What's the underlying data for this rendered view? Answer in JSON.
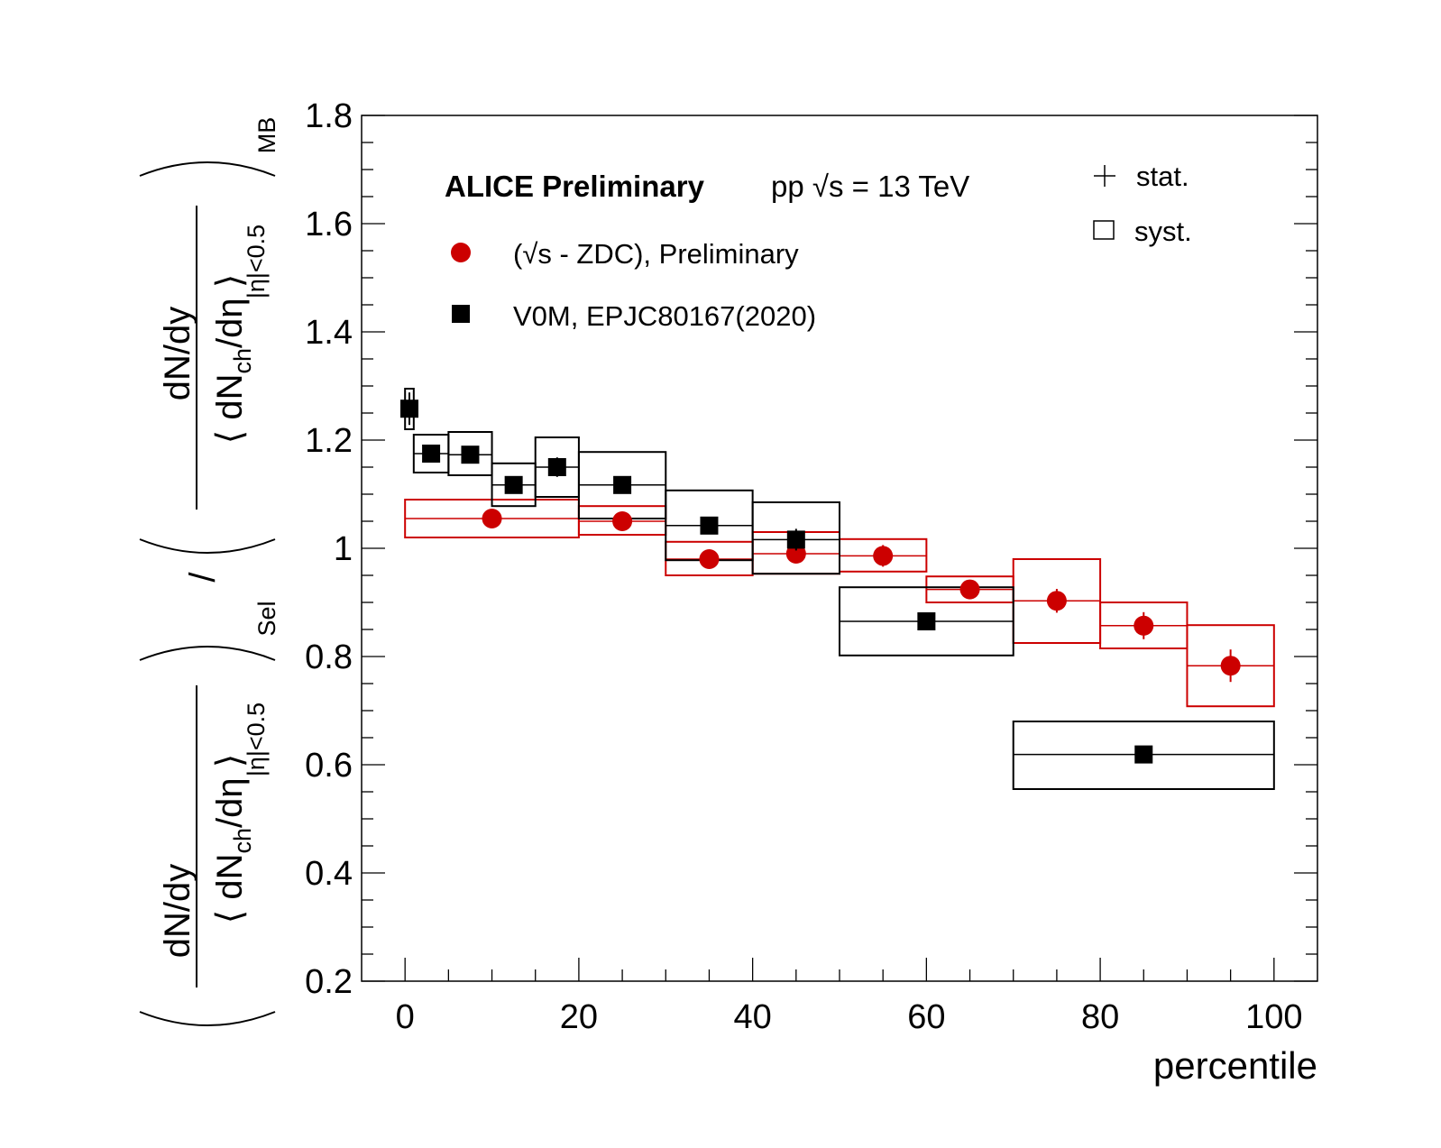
{
  "chart_data": {
    "type": "scatter",
    "header_label": "ALICE Preliminary",
    "collision_label": "pp  √s = 13 TeV",
    "xlabel": "percentile",
    "ylabel": {
      "numerator": "dN/dy",
      "denominator_prefix": "⟨ dN",
      "denominator_sub": "ch",
      "denominator_suffix": "/dη ⟩",
      "eta_cut": "|η|<0.5",
      "sel_subscript": "Sel",
      "mb_subscript": "MB",
      "divider": "/"
    },
    "xlim": [
      -5,
      105
    ],
    "ylim": [
      0.2,
      1.8
    ],
    "xticks": [
      0,
      20,
      40,
      60,
      80,
      100
    ],
    "xtick_labels": [
      "0",
      "20",
      "40",
      "60",
      "80",
      "100"
    ],
    "yticks": [
      0.2,
      0.4,
      0.6,
      0.8,
      1.0,
      1.2,
      1.4,
      1.6,
      1.8
    ],
    "ytick_labels": [
      "0.2",
      "0.4",
      "0.6",
      "0.8",
      "1",
      "1.2",
      "1.4",
      "1.6",
      "1.8"
    ],
    "legend": {
      "stat": "stat.",
      "syst": "syst."
    },
    "series": [
      {
        "name": "(√s - ZDC), Preliminary",
        "color": "#cc0000",
        "marker": "circle",
        "points": [
          {
            "x": 10,
            "y": 1.055,
            "xlo": 0,
            "xhi": 20,
            "stat": 0.004,
            "syst_lo": 1.02,
            "syst_hi": 1.09
          },
          {
            "x": 25,
            "y": 1.05,
            "xlo": 20,
            "xhi": 30,
            "stat": 0.004,
            "syst_lo": 1.025,
            "syst_hi": 1.078
          },
          {
            "x": 35,
            "y": 0.98,
            "xlo": 30,
            "xhi": 40,
            "stat": 0.005,
            "syst_lo": 0.95,
            "syst_hi": 1.012
          },
          {
            "x": 45,
            "y": 0.99,
            "xlo": 40,
            "xhi": 50,
            "stat": 0.006,
            "syst_lo": 0.953,
            "syst_hi": 1.03
          },
          {
            "x": 55,
            "y": 0.986,
            "xlo": 50,
            "xhi": 60,
            "stat": 0.02,
            "syst_lo": 0.957,
            "syst_hi": 1.017
          },
          {
            "x": 65,
            "y": 0.924,
            "xlo": 60,
            "xhi": 70,
            "stat": 0.015,
            "syst_lo": 0.9,
            "syst_hi": 0.948
          },
          {
            "x": 75,
            "y": 0.903,
            "xlo": 70,
            "xhi": 80,
            "stat": 0.022,
            "syst_lo": 0.825,
            "syst_hi": 0.98
          },
          {
            "x": 85,
            "y": 0.857,
            "xlo": 80,
            "xhi": 90,
            "stat": 0.025,
            "syst_lo": 0.815,
            "syst_hi": 0.9
          },
          {
            "x": 95,
            "y": 0.783,
            "xlo": 90,
            "xhi": 100,
            "stat": 0.03,
            "syst_lo": 0.708,
            "syst_hi": 0.858
          }
        ]
      },
      {
        "name": "V0M, EPJC80167(2020)",
        "color": "#000000",
        "marker": "square",
        "points": [
          {
            "x": 0.5,
            "y": 1.258,
            "xlo": 0,
            "xhi": 1,
            "stat": 0.03,
            "syst_lo": 1.22,
            "syst_hi": 1.295
          },
          {
            "x": 3,
            "y": 1.175,
            "xlo": 1,
            "xhi": 5,
            "stat": 0.015,
            "syst_lo": 1.14,
            "syst_hi": 1.21
          },
          {
            "x": 7.5,
            "y": 1.173,
            "xlo": 5,
            "xhi": 10,
            "stat": 0.015,
            "syst_lo": 1.135,
            "syst_hi": 1.215
          },
          {
            "x": 12.5,
            "y": 1.117,
            "xlo": 10,
            "xhi": 15,
            "stat": 0.012,
            "syst_lo": 1.078,
            "syst_hi": 1.157
          },
          {
            "x": 17.5,
            "y": 1.15,
            "xlo": 15,
            "xhi": 20,
            "stat": 0.018,
            "syst_lo": 1.095,
            "syst_hi": 1.205
          },
          {
            "x": 25,
            "y": 1.117,
            "xlo": 20,
            "xhi": 30,
            "stat": 0.008,
            "syst_lo": 1.055,
            "syst_hi": 1.178
          },
          {
            "x": 35,
            "y": 1.042,
            "xlo": 30,
            "xhi": 40,
            "stat": 0.015,
            "syst_lo": 0.978,
            "syst_hi": 1.107
          },
          {
            "x": 45,
            "y": 1.016,
            "xlo": 40,
            "xhi": 50,
            "stat": 0.02,
            "syst_lo": 0.953,
            "syst_hi": 1.085
          },
          {
            "x": 60,
            "y": 0.865,
            "xlo": 50,
            "xhi": 70,
            "stat": 0.008,
            "syst_lo": 0.802,
            "syst_hi": 0.928
          },
          {
            "x": 85,
            "y": 0.619,
            "xlo": 70,
            "xhi": 100,
            "stat": 0.008,
            "syst_lo": 0.555,
            "syst_hi": 0.68
          }
        ]
      }
    ]
  }
}
